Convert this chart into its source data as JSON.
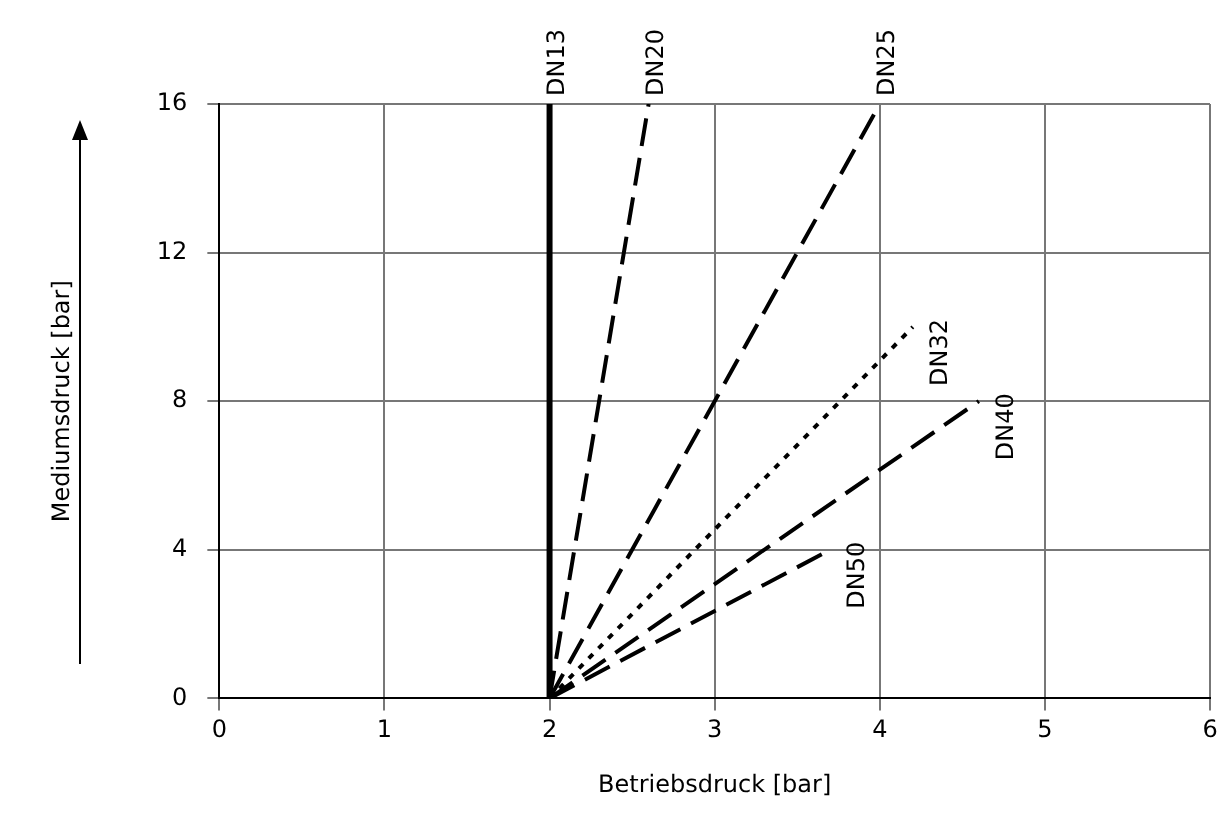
{
  "chart_data": {
    "type": "line",
    "xlabel": "Betriebsdruck [bar]",
    "ylabel": "Mediumsdruck [bar]",
    "xlim": [
      0,
      6
    ],
    "xticks": [
      0,
      1,
      2,
      3,
      4,
      5,
      6
    ],
    "ylim": [
      0,
      16
    ],
    "yticks": [
      0,
      4,
      8,
      12,
      16
    ],
    "grid": true,
    "legend": false,
    "marker": "none",
    "series": [
      {
        "name": "DN13",
        "color": "#000000",
        "x": [
          2,
          2
        ],
        "values": [
          0,
          16
        ],
        "line_style": "solid"
      },
      {
        "name": "DN20",
        "color": "#000000",
        "x": [
          2,
          2.6
        ],
        "values": [
          0,
          16
        ],
        "line_style": "dashed"
      },
      {
        "name": "DN25",
        "color": "#000000",
        "x": [
          2,
          4
        ],
        "values": [
          0,
          16
        ],
        "line_style": "dashed"
      },
      {
        "name": "DN32",
        "color": "#000000",
        "x": [
          2,
          4.2
        ],
        "values": [
          0,
          10
        ],
        "line_style": "dotted"
      },
      {
        "name": "DN40",
        "color": "#000000",
        "x": [
          2,
          4.6
        ],
        "values": [
          0,
          8
        ],
        "line_style": "dashed"
      },
      {
        "name": "DN50",
        "color": "#000000",
        "x": [
          2,
          3.7
        ],
        "values": [
          0,
          4
        ],
        "line_style": "dashed"
      }
    ]
  }
}
